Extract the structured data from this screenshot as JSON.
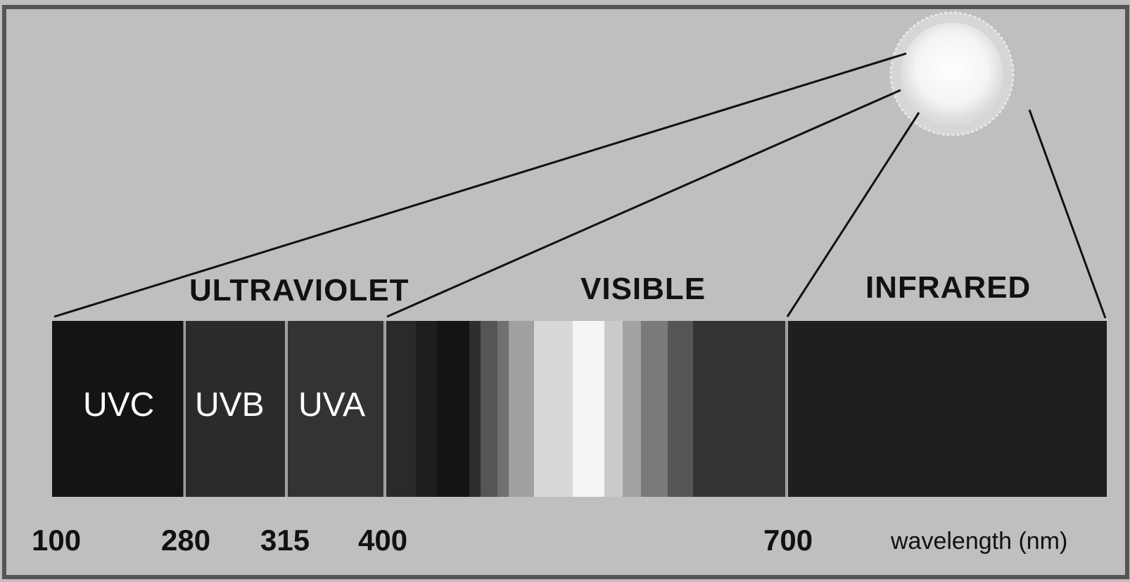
{
  "regions": {
    "ultraviolet": "ULTRAVIOLET",
    "visible": "VISIBLE",
    "infrared": "INFRARED"
  },
  "uv_bands": {
    "uvc": "UVC",
    "uvb": "UVB",
    "uva": "UVA"
  },
  "ticks": {
    "t100": "100",
    "t280": "280",
    "t315": "315",
    "t400": "400",
    "t700": "700"
  },
  "axis_unit": "wavelength (nm)",
  "colors": {
    "background": "#bfbfbf",
    "uvc": "#141414",
    "uvb": "#2b2b2b",
    "uva": "#333333",
    "infrared": "#1f1f1f",
    "sun_core": "#ffffff",
    "sun_halo": "#d9d9d9"
  }
}
